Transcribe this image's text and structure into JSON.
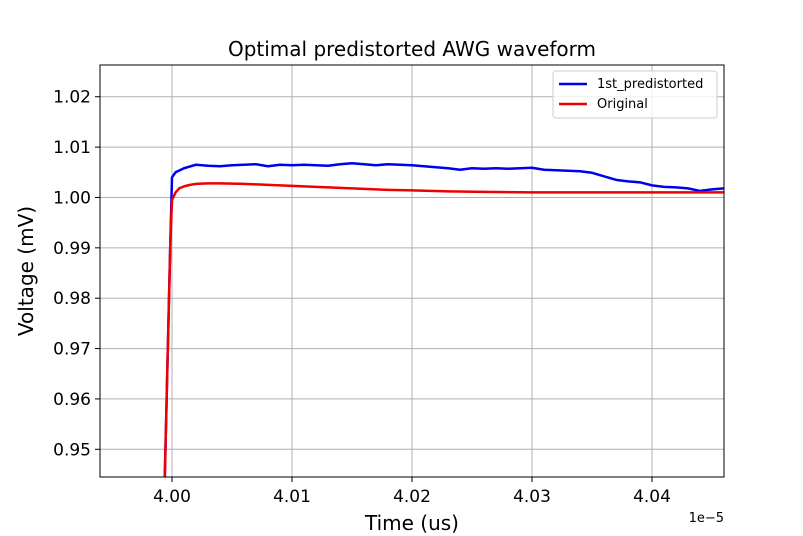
{
  "chart_data": {
    "type": "line",
    "title": "Optimal predistorted AWG waveform",
    "xlabel": "Time (us)",
    "ylabel": "Voltage (mV)",
    "x_offset_label": "1e−5",
    "xlim": [
      3.994,
      4.046
    ],
    "ylim": [
      0.9445,
      1.0263
    ],
    "x_ticks": [
      4.0,
      4.01,
      4.02,
      4.03,
      4.04
    ],
    "x_tick_labels": [
      "4.00",
      "4.01",
      "4.02",
      "4.03",
      "4.04"
    ],
    "y_ticks": [
      0.95,
      0.96,
      0.97,
      0.98,
      0.99,
      1.0,
      1.01,
      1.02
    ],
    "y_tick_labels": [
      "0.95",
      "0.96",
      "0.97",
      "0.98",
      "0.99",
      "1.00",
      "1.01",
      "1.02"
    ],
    "grid": true,
    "legend_position": "top-right",
    "series": [
      {
        "name": "1st_predistorted",
        "color": "#0000ee",
        "x": [
          3.9994,
          3.99985,
          4.0,
          4.0003,
          4.001,
          4.002,
          4.003,
          4.004,
          4.005,
          4.006,
          4.007,
          4.008,
          4.009,
          4.01,
          4.011,
          4.012,
          4.013,
          4.014,
          4.015,
          4.016,
          4.017,
          4.018,
          4.019,
          4.02,
          4.021,
          4.022,
          4.023,
          4.024,
          4.025,
          4.026,
          4.027,
          4.028,
          4.029,
          4.03,
          4.031,
          4.032,
          4.033,
          4.034,
          4.035,
          4.036,
          4.037,
          4.038,
          4.039,
          4.04,
          4.041,
          4.042,
          4.043,
          4.044,
          4.045,
          4.046
        ],
        "y": [
          0.9445,
          0.99,
          1.004,
          1.005,
          1.0058,
          1.0065,
          1.0063,
          1.0062,
          1.0064,
          1.0065,
          1.0066,
          1.0062,
          1.0065,
          1.0064,
          1.0065,
          1.0064,
          1.0063,
          1.0066,
          1.0068,
          1.0066,
          1.0064,
          1.0066,
          1.0065,
          1.0064,
          1.0062,
          1.006,
          1.0058,
          1.0055,
          1.0058,
          1.0057,
          1.0058,
          1.0057,
          1.0058,
          1.0059,
          1.0055,
          1.0054,
          1.0053,
          1.0052,
          1.0049,
          1.0042,
          1.0035,
          1.0032,
          1.003,
          1.0024,
          1.0021,
          1.002,
          1.0018,
          1.0013,
          1.0016,
          1.0018
        ]
      },
      {
        "name": "Original",
        "color": "#ee0000",
        "x": [
          3.9994,
          3.99985,
          4.0,
          4.0003,
          4.0006,
          4.001,
          4.0015,
          4.002,
          4.003,
          4.004,
          4.006,
          4.008,
          4.01,
          4.012,
          4.015,
          4.018,
          4.02,
          4.023,
          4.026,
          4.03,
          4.034,
          4.038,
          4.042,
          4.046
        ],
        "y": [
          0.9445,
          0.99,
          0.9995,
          1.001,
          1.0018,
          1.0022,
          1.0025,
          1.0027,
          1.0028,
          1.0028,
          1.0027,
          1.0025,
          1.0023,
          1.0021,
          1.0018,
          1.0015,
          1.0014,
          1.0012,
          1.0011,
          1.001,
          1.001,
          1.001,
          1.001,
          1.001
        ]
      }
    ]
  }
}
